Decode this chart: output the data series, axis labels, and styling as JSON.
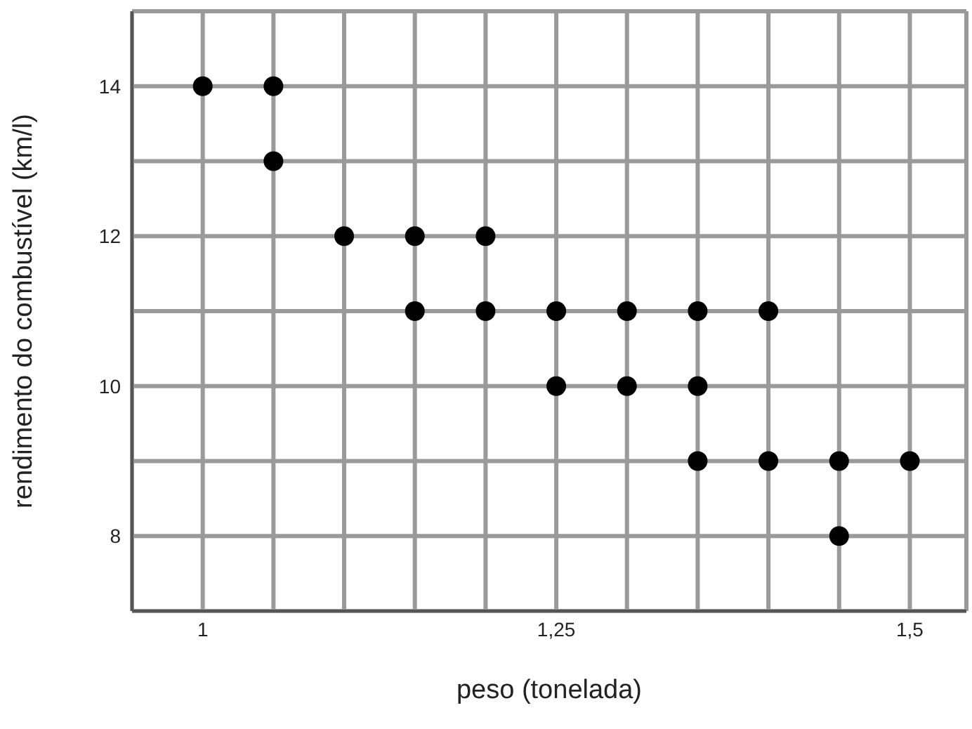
{
  "chart_data": {
    "type": "scatter",
    "xlabel": "peso (tonelada)",
    "ylabel": "rendimento do combustível (km/l)",
    "x": [
      1,
      1.05,
      1.05,
      1.1,
      1.15,
      1.2,
      1.15,
      1.2,
      1.25,
      1.3,
      1.35,
      1.4,
      1.25,
      1.3,
      1.35,
      1.35,
      1.4,
      1.45,
      1.5,
      1.45
    ],
    "values": [
      14,
      14,
      13,
      12,
      12,
      12,
      11,
      11,
      11,
      11,
      11,
      11,
      10,
      10,
      10,
      9,
      9,
      9,
      9,
      8
    ],
    "color": "#000000",
    "marker": "circle",
    "grid": true,
    "xlim": [
      0.95,
      1.54
    ],
    "xticks": [
      {
        "value": 1,
        "label": "1"
      },
      {
        "value": 1.05,
        "label": null
      },
      {
        "value": 1.1,
        "label": null
      },
      {
        "value": 1.15,
        "label": null
      },
      {
        "value": 1.2,
        "label": null
      },
      {
        "value": 1.25,
        "label": "1,25"
      },
      {
        "value": 1.3,
        "label": null
      },
      {
        "value": 1.35,
        "label": null
      },
      {
        "value": 1.4,
        "label": null
      },
      {
        "value": 1.45,
        "label": null
      },
      {
        "value": 1.5,
        "label": "1,5"
      }
    ],
    "ylim": [
      7,
      15
    ],
    "yticks": [
      {
        "value": 8,
        "label": "8"
      },
      {
        "value": 9,
        "label": null
      },
      {
        "value": 10,
        "label": "10"
      },
      {
        "value": 11,
        "label": null
      },
      {
        "value": 12,
        "label": "12"
      },
      {
        "value": 13,
        "label": null
      },
      {
        "value": 14,
        "label": "14"
      }
    ]
  }
}
